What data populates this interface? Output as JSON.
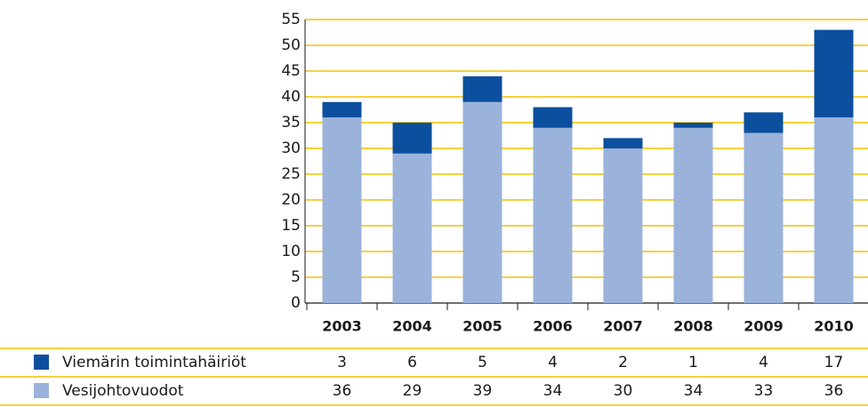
{
  "chart_data": {
    "type": "stacked_bar",
    "categories": [
      "2003",
      "2004",
      "2005",
      "2006",
      "2007",
      "2008",
      "2009",
      "2010"
    ],
    "series": [
      {
        "name": "Viemärin toimintahäiriöt",
        "color": "#0b4f9e",
        "values": [
          3,
          6,
          5,
          4,
          2,
          1,
          4,
          17
        ]
      },
      {
        "name": "Vesijohtovuodot",
        "color": "#9bb3da",
        "values": [
          36,
          29,
          39,
          34,
          30,
          34,
          33,
          36
        ]
      }
    ],
    "ylim": [
      0,
      55
    ],
    "yticks": [
      0,
      5,
      10,
      15,
      20,
      25,
      30,
      35,
      40,
      45,
      50,
      55
    ],
    "grid": true,
    "grid_color": "#f2c200"
  }
}
